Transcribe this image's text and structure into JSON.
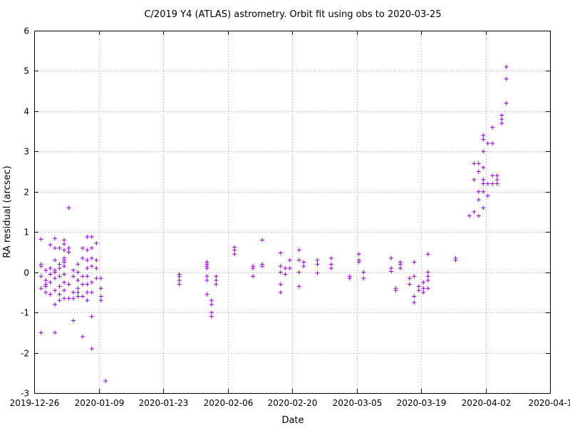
{
  "chart_data": {
    "type": "scatter",
    "title": "C/2019 Y4 (ATLAS) astrometry. Orbit fit using obs to 2020-03-25",
    "xlabel": "Date",
    "ylabel": "RA residual (arcsec)",
    "x_axis_type": "date",
    "xlim": [
      "2019-12-26",
      "2020-04-16"
    ],
    "ylim": [
      -3,
      6
    ],
    "grid": true,
    "x_tick_labels": [
      "2019-12-26",
      "2020-01-09",
      "2020-01-23",
      "2020-02-06",
      "2020-02-20",
      "2020-03-05",
      "2020-03-19",
      "2020-04-02",
      "2020-04-1"
    ],
    "y_tick_labels": [
      "-3",
      "-2",
      "-1",
      "0",
      "1",
      "2",
      "3",
      "4",
      "5",
      "6"
    ],
    "marker": "plus",
    "marker_color": "#9400d3",
    "points": [
      [
        "2019-12-27",
        0.82
      ],
      [
        "2019-12-27",
        0.15
      ],
      [
        "2019-12-27",
        -0.4
      ],
      [
        "2019-12-27",
        -1.5
      ],
      [
        "2019-12-27",
        0.2
      ],
      [
        "2019-12-27",
        -0.1
      ],
      [
        "2019-12-28",
        -0.3
      ],
      [
        "2019-12-28",
        -0.5
      ],
      [
        "2019-12-28",
        0.05
      ],
      [
        "2019-12-28",
        -0.2
      ],
      [
        "2019-12-28",
        -0.35
      ],
      [
        "2019-12-29",
        0.68
      ],
      [
        "2019-12-29",
        0.1
      ],
      [
        "2019-12-29",
        -0.05
      ],
      [
        "2019-12-29",
        -0.25
      ],
      [
        "2019-12-29",
        -0.55
      ],
      [
        "2019-12-30",
        0.84
      ],
      [
        "2019-12-30",
        0.6
      ],
      [
        "2019-12-30",
        0.3
      ],
      [
        "2019-12-30",
        0.0
      ],
      [
        "2019-12-30",
        -0.15
      ],
      [
        "2019-12-30",
        -0.45
      ],
      [
        "2019-12-30",
        -0.8
      ],
      [
        "2019-12-30",
        -1.5
      ],
      [
        "2019-12-30",
        0.05
      ],
      [
        "2019-12-31",
        0.6
      ],
      [
        "2019-12-31",
        0.2
      ],
      [
        "2019-12-31",
        -0.1
      ],
      [
        "2019-12-31",
        -0.35
      ],
      [
        "2019-12-31",
        -0.55
      ],
      [
        "2019-12-31",
        -0.7
      ],
      [
        "2019-12-31",
        0.1
      ],
      [
        "2020-01-01",
        0.8
      ],
      [
        "2020-01-01",
        0.7
      ],
      [
        "2020-01-01",
        0.55
      ],
      [
        "2020-01-01",
        0.35
      ],
      [
        "2020-01-01",
        0.25
      ],
      [
        "2020-01-01",
        0.15
      ],
      [
        "2020-01-01",
        -0.05
      ],
      [
        "2020-01-01",
        -0.25
      ],
      [
        "2020-01-01",
        -0.45
      ],
      [
        "2020-01-01",
        -0.65
      ],
      [
        "2020-01-01",
        -0.05
      ],
      [
        "2020-01-01",
        0.3
      ],
      [
        "2020-01-02",
        0.6
      ],
      [
        "2020-01-02",
        1.6
      ],
      [
        "2020-01-02",
        0.5
      ],
      [
        "2020-01-02",
        -0.3
      ],
      [
        "2020-01-02",
        -0.65
      ],
      [
        "2020-01-03",
        0.05
      ],
      [
        "2020-01-03",
        -0.1
      ],
      [
        "2020-01-03",
        -0.5
      ],
      [
        "2020-01-03",
        -1.2
      ],
      [
        "2020-01-03",
        -0.65
      ],
      [
        "2020-01-04",
        0.2
      ],
      [
        "2020-01-04",
        0.0
      ],
      [
        "2020-01-04",
        -0.2
      ],
      [
        "2020-01-04",
        -0.4
      ],
      [
        "2020-01-04",
        -0.6
      ],
      [
        "2020-01-04",
        -0.5
      ],
      [
        "2020-01-05",
        0.6
      ],
      [
        "2020-01-05",
        0.35
      ],
      [
        "2020-01-05",
        -0.1
      ],
      [
        "2020-01-05",
        -0.3
      ],
      [
        "2020-01-05",
        -0.6
      ],
      [
        "2020-01-05",
        -1.6
      ],
      [
        "2020-01-06",
        0.88
      ],
      [
        "2020-01-06",
        0.55
      ],
      [
        "2020-01-06",
        0.3
      ],
      [
        "2020-01-06",
        0.1
      ],
      [
        "2020-01-06",
        -0.1
      ],
      [
        "2020-01-06",
        -0.3
      ],
      [
        "2020-01-06",
        -0.5
      ],
      [
        "2020-01-06",
        -0.7
      ],
      [
        "2020-01-07",
        0.88
      ],
      [
        "2020-01-07",
        0.6
      ],
      [
        "2020-01-07",
        0.35
      ],
      [
        "2020-01-07",
        0.15
      ],
      [
        "2020-01-07",
        -0.25
      ],
      [
        "2020-01-07",
        -0.5
      ],
      [
        "2020-01-07",
        -1.1
      ],
      [
        "2020-01-07",
        -1.9
      ],
      [
        "2020-01-08",
        0.3
      ],
      [
        "2020-01-08",
        0.1
      ],
      [
        "2020-01-08",
        -0.15
      ],
      [
        "2020-01-08",
        0.72
      ],
      [
        "2020-01-09",
        -0.4
      ],
      [
        "2020-01-09",
        -0.6
      ],
      [
        "2020-01-09",
        -0.7
      ],
      [
        "2020-01-09",
        -0.15
      ],
      [
        "2020-01-10",
        -2.7
      ],
      [
        "2020-01-26",
        -0.05
      ],
      [
        "2020-01-26",
        -0.1
      ],
      [
        "2020-01-26",
        -0.2
      ],
      [
        "2020-01-26",
        -0.3
      ],
      [
        "2020-02-01",
        0.25
      ],
      [
        "2020-02-01",
        0.2
      ],
      [
        "2020-02-01",
        0.15
      ],
      [
        "2020-02-01",
        0.1
      ],
      [
        "2020-02-01",
        -0.1
      ],
      [
        "2020-02-01",
        -0.2
      ],
      [
        "2020-02-01",
        -0.55
      ],
      [
        "2020-02-02",
        -0.7
      ],
      [
        "2020-02-02",
        -0.8
      ],
      [
        "2020-02-02",
        -1.0
      ],
      [
        "2020-02-02",
        -1.1
      ],
      [
        "2020-02-03",
        -0.1
      ],
      [
        "2020-02-03",
        -0.2
      ],
      [
        "2020-02-03",
        -0.3
      ],
      [
        "2020-02-07",
        0.62
      ],
      [
        "2020-02-07",
        0.55
      ],
      [
        "2020-02-07",
        0.45
      ],
      [
        "2020-02-11",
        0.15
      ],
      [
        "2020-02-11",
        0.1
      ],
      [
        "2020-02-11",
        -0.1
      ],
      [
        "2020-02-13",
        0.8
      ],
      [
        "2020-02-13",
        0.2
      ],
      [
        "2020-02-13",
        0.15
      ],
      [
        "2020-02-17",
        0.48
      ],
      [
        "2020-02-17",
        0.15
      ],
      [
        "2020-02-17",
        0.0
      ],
      [
        "2020-02-17",
        -0.3
      ],
      [
        "2020-02-17",
        -0.5
      ],
      [
        "2020-02-18",
        -0.05
      ],
      [
        "2020-02-18",
        0.1
      ],
      [
        "2020-02-19",
        0.3
      ],
      [
        "2020-02-19",
        0.1
      ],
      [
        "2020-02-21",
        0.55
      ],
      [
        "2020-02-21",
        0.3
      ],
      [
        "2020-02-21",
        0.0
      ],
      [
        "2020-02-21",
        -0.35
      ],
      [
        "2020-02-22",
        0.25
      ],
      [
        "2020-02-22",
        0.15
      ],
      [
        "2020-02-25",
        0.3
      ],
      [
        "2020-02-25",
        0.2
      ],
      [
        "2020-02-25",
        -0.02
      ],
      [
        "2020-02-28",
        0.35
      ],
      [
        "2020-02-28",
        0.2
      ],
      [
        "2020-02-28",
        0.1
      ],
      [
        "2020-03-03",
        -0.1
      ],
      [
        "2020-03-03",
        -0.15
      ],
      [
        "2020-03-05",
        0.45
      ],
      [
        "2020-03-05",
        0.3
      ],
      [
        "2020-03-05",
        0.25
      ],
      [
        "2020-03-06",
        0.0
      ],
      [
        "2020-03-06",
        -0.15
      ],
      [
        "2020-03-12",
        0.35
      ],
      [
        "2020-03-12",
        0.1
      ],
      [
        "2020-03-12",
        0.02
      ],
      [
        "2020-03-13",
        -0.4
      ],
      [
        "2020-03-13",
        -0.45
      ],
      [
        "2020-03-14",
        0.25
      ],
      [
        "2020-03-14",
        0.2
      ],
      [
        "2020-03-14",
        0.1
      ],
      [
        "2020-03-16",
        -0.15
      ],
      [
        "2020-03-16",
        -0.3
      ],
      [
        "2020-03-17",
        0.25
      ],
      [
        "2020-03-17",
        -0.1
      ],
      [
        "2020-03-17",
        -0.6
      ],
      [
        "2020-03-17",
        -0.75
      ],
      [
        "2020-03-18",
        -0.35
      ],
      [
        "2020-03-18",
        -0.45
      ],
      [
        "2020-03-19",
        -0.25
      ],
      [
        "2020-03-19",
        -0.4
      ],
      [
        "2020-03-19",
        -0.5
      ],
      [
        "2020-03-20",
        0.45
      ],
      [
        "2020-03-20",
        0.0
      ],
      [
        "2020-03-20",
        -0.1
      ],
      [
        "2020-03-20",
        -0.2
      ],
      [
        "2020-03-20",
        -0.4
      ],
      [
        "2020-03-26",
        0.35
      ],
      [
        "2020-03-26",
        0.3
      ],
      [
        "2020-03-29",
        1.4
      ],
      [
        "2020-03-30",
        2.3
      ],
      [
        "2020-03-30",
        2.7
      ],
      [
        "2020-03-30",
        1.5
      ],
      [
        "2020-03-31",
        2.7
      ],
      [
        "2020-03-31",
        2.5
      ],
      [
        "2020-03-31",
        2.0
      ],
      [
        "2020-03-31",
        1.4
      ],
      [
        "2020-03-31",
        1.8
      ],
      [
        "2020-04-01",
        3.4
      ],
      [
        "2020-04-01",
        3.3
      ],
      [
        "2020-04-01",
        3.0
      ],
      [
        "2020-04-01",
        2.6
      ],
      [
        "2020-04-01",
        2.2
      ],
      [
        "2020-04-01",
        2.0
      ],
      [
        "2020-04-01",
        1.6
      ],
      [
        "2020-04-01",
        2.3
      ],
      [
        "2020-04-02",
        3.2
      ],
      [
        "2020-04-02",
        2.2
      ],
      [
        "2020-04-02",
        1.9
      ],
      [
        "2020-04-03",
        3.6
      ],
      [
        "2020-04-03",
        3.2
      ],
      [
        "2020-04-03",
        2.4
      ],
      [
        "2020-04-03",
        2.2
      ],
      [
        "2020-04-04",
        2.4
      ],
      [
        "2020-04-04",
        2.3
      ],
      [
        "2020-04-04",
        2.2
      ],
      [
        "2020-04-05",
        3.9
      ],
      [
        "2020-04-05",
        3.8
      ],
      [
        "2020-04-05",
        3.7
      ],
      [
        "2020-04-06",
        5.1
      ],
      [
        "2020-04-06",
        4.8
      ],
      [
        "2020-04-06",
        4.2
      ]
    ]
  }
}
